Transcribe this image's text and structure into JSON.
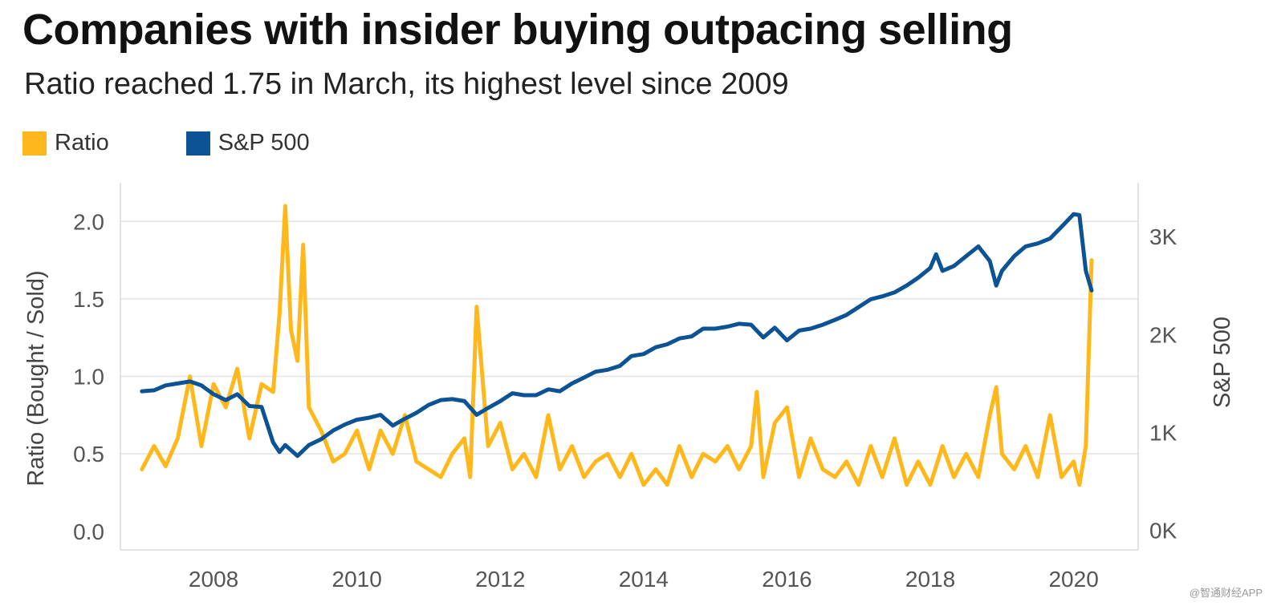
{
  "title": "Companies with insider buying outpacing selling",
  "subtitle": "Ratio reached 1.75 in March, its highest level since 2009",
  "legend": [
    {
      "label": "Ratio",
      "color": "#FFB81C"
    },
    {
      "label": "S&P 500",
      "color": "#0B5394"
    }
  ],
  "watermark": "@智通财经APP",
  "chart_data": {
    "type": "line",
    "title": "Companies with insider buying outpacing selling",
    "subtitle": "Ratio reached 1.75 in March, its highest level since 2009",
    "grid": true,
    "legend_position": "top-left",
    "x_range": [
      2006.7,
      2020.9
    ],
    "x_ticks": [
      2008,
      2010,
      2012,
      2014,
      2016,
      2018,
      2020
    ],
    "x_tick_labels": [
      "2008",
      "2010",
      "2012",
      "2014",
      "2016",
      "2018",
      "2020"
    ],
    "y_left": {
      "label": "Ratio (Bought / Sold)",
      "range": [
        -0.12,
        2.25
      ],
      "ticks": [
        0.0,
        0.5,
        1.0,
        1.5,
        2.0
      ],
      "tick_labels": [
        "0.0",
        "0.5",
        "1.0",
        "1.5",
        "2.0"
      ]
    },
    "y_right": {
      "label": "S&P 500",
      "range": [
        -200,
        3550
      ],
      "ticks": [
        0,
        1000,
        2000,
        3000
      ],
      "tick_labels": [
        "0K",
        "1K",
        "2K",
        "3K"
      ]
    },
    "series": [
      {
        "name": "Ratio",
        "axis": "left",
        "color": "#FFB81C",
        "x": [
          2007.0,
          2007.17,
          2007.33,
          2007.5,
          2007.67,
          2007.83,
          2008.0,
          2008.17,
          2008.33,
          2008.5,
          2008.67,
          2008.83,
          2008.92,
          2009.0,
          2009.08,
          2009.17,
          2009.25,
          2009.33,
          2009.5,
          2009.67,
          2009.83,
          2010.0,
          2010.17,
          2010.33,
          2010.5,
          2010.67,
          2010.83,
          2011.0,
          2011.17,
          2011.33,
          2011.5,
          2011.58,
          2011.67,
          2011.83,
          2012.0,
          2012.17,
          2012.33,
          2012.5,
          2012.67,
          2012.83,
          2013.0,
          2013.17,
          2013.33,
          2013.5,
          2013.67,
          2013.83,
          2014.0,
          2014.17,
          2014.33,
          2014.5,
          2014.67,
          2014.83,
          2015.0,
          2015.17,
          2015.33,
          2015.5,
          2015.58,
          2015.67,
          2015.83,
          2016.0,
          2016.17,
          2016.33,
          2016.5,
          2016.67,
          2016.83,
          2017.0,
          2017.17,
          2017.33,
          2017.5,
          2017.67,
          2017.83,
          2018.0,
          2018.17,
          2018.33,
          2018.5,
          2018.67,
          2018.83,
          2018.92,
          2019.0,
          2019.17,
          2019.33,
          2019.5,
          2019.67,
          2019.83,
          2020.0,
          2020.08,
          2020.17,
          2020.25
        ],
        "values": [
          0.4,
          0.55,
          0.42,
          0.6,
          1.0,
          0.55,
          0.95,
          0.8,
          1.05,
          0.6,
          0.95,
          0.9,
          1.4,
          2.1,
          1.3,
          1.1,
          1.85,
          0.8,
          0.65,
          0.45,
          0.5,
          0.65,
          0.4,
          0.65,
          0.5,
          0.75,
          0.45,
          0.4,
          0.35,
          0.5,
          0.6,
          0.35,
          1.45,
          0.55,
          0.7,
          0.4,
          0.5,
          0.35,
          0.75,
          0.4,
          0.55,
          0.35,
          0.45,
          0.5,
          0.35,
          0.5,
          0.3,
          0.4,
          0.3,
          0.55,
          0.35,
          0.5,
          0.45,
          0.55,
          0.4,
          0.55,
          0.9,
          0.35,
          0.7,
          0.8,
          0.35,
          0.6,
          0.4,
          0.35,
          0.45,
          0.3,
          0.55,
          0.35,
          0.6,
          0.3,
          0.45,
          0.3,
          0.55,
          0.35,
          0.5,
          0.35,
          0.75,
          0.93,
          0.5,
          0.4,
          0.55,
          0.35,
          0.75,
          0.35,
          0.45,
          0.3,
          0.55,
          1.75
        ]
      },
      {
        "name": "S&P 500",
        "axis": "right",
        "color": "#0B5394",
        "x": [
          2007.0,
          2007.17,
          2007.33,
          2007.5,
          2007.67,
          2007.83,
          2008.0,
          2008.17,
          2008.33,
          2008.5,
          2008.67,
          2008.83,
          2008.92,
          2009.0,
          2009.17,
          2009.33,
          2009.5,
          2009.67,
          2009.83,
          2010.0,
          2010.17,
          2010.33,
          2010.5,
          2010.67,
          2010.83,
          2011.0,
          2011.17,
          2011.33,
          2011.5,
          2011.67,
          2011.83,
          2012.0,
          2012.17,
          2012.33,
          2012.5,
          2012.67,
          2012.83,
          2013.0,
          2013.17,
          2013.33,
          2013.5,
          2013.67,
          2013.83,
          2014.0,
          2014.17,
          2014.33,
          2014.5,
          2014.67,
          2014.83,
          2015.0,
          2015.17,
          2015.33,
          2015.5,
          2015.67,
          2015.83,
          2016.0,
          2016.17,
          2016.33,
          2016.5,
          2016.67,
          2016.83,
          2017.0,
          2017.17,
          2017.33,
          2017.5,
          2017.67,
          2017.83,
          2018.0,
          2018.08,
          2018.17,
          2018.33,
          2018.5,
          2018.67,
          2018.83,
          2018.92,
          2019.0,
          2019.17,
          2019.33,
          2019.5,
          2019.67,
          2019.83,
          2020.0,
          2020.08,
          2020.17,
          2020.25
        ],
        "values": [
          1420,
          1430,
          1480,
          1500,
          1520,
          1480,
          1390,
          1330,
          1390,
          1270,
          1260,
          900,
          800,
          870,
          760,
          870,
          930,
          1020,
          1080,
          1130,
          1150,
          1180,
          1070,
          1140,
          1200,
          1280,
          1330,
          1340,
          1320,
          1180,
          1250,
          1320,
          1400,
          1380,
          1380,
          1440,
          1420,
          1500,
          1560,
          1620,
          1640,
          1680,
          1780,
          1800,
          1870,
          1900,
          1960,
          1980,
          2060,
          2060,
          2080,
          2110,
          2100,
          1970,
          2070,
          1940,
          2040,
          2060,
          2100,
          2150,
          2200,
          2280,
          2360,
          2390,
          2430,
          2500,
          2580,
          2680,
          2820,
          2650,
          2700,
          2800,
          2900,
          2750,
          2500,
          2650,
          2800,
          2900,
          2930,
          2980,
          3100,
          3230,
          3220,
          2650,
          2450
        ]
      }
    ]
  }
}
